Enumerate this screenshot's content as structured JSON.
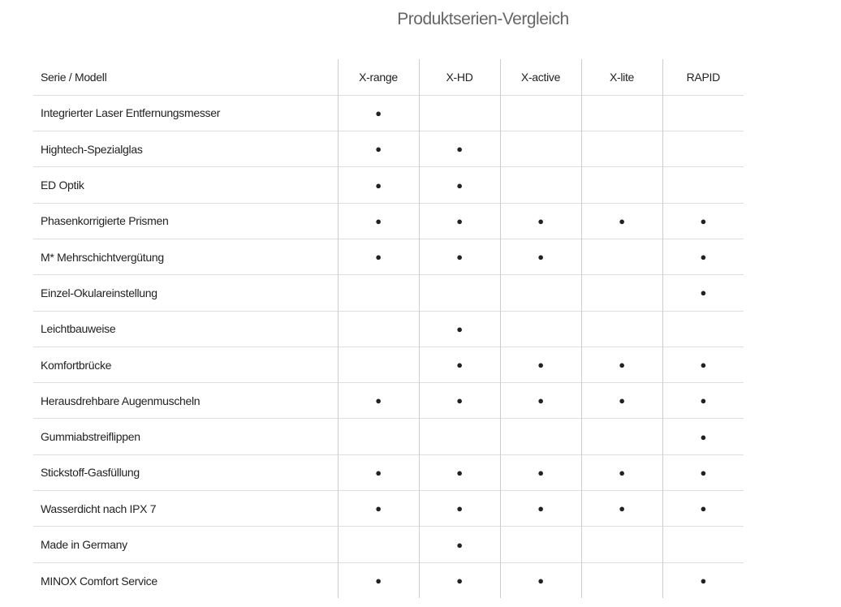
{
  "title": "Produktserien-Vergleich",
  "table": {
    "header": [
      "Serie / Modell",
      "X-range",
      "X-HD",
      "X-active",
      "X-lite",
      "RAPID"
    ],
    "rows": [
      [
        "Integrierter Laser Entfernungsmesser",
        "●",
        null,
        null,
        null,
        null
      ],
      [
        "Hightech-Spezialglas",
        "●",
        "●",
        null,
        null,
        null
      ],
      [
        "ED Optik",
        "●",
        "●",
        null,
        null,
        null
      ],
      [
        "Phasenkorrigierte Prismen",
        "●",
        "●",
        "●",
        "●",
        "●"
      ],
      [
        "M* Mehrschichtvergütung",
        "●",
        "●",
        "●",
        null,
        "●"
      ],
      [
        "Einzel-Okulareinstellung",
        null,
        null,
        null,
        null,
        "●"
      ],
      [
        "Leichtbauweise",
        null,
        "●",
        null,
        null,
        null
      ],
      [
        "Komfortbrücke",
        null,
        "●",
        "●",
        "●",
        "●"
      ],
      [
        "Herausdrehbare Augenmuscheln",
        "●",
        "●",
        "●",
        "●",
        "●"
      ],
      [
        "Gummiabstreiflippen",
        null,
        null,
        null,
        null,
        "●"
      ],
      [
        "Stickstoff-Gasfüllung",
        "●",
        "●",
        "●",
        "●",
        "●"
      ],
      [
        "Wasserdicht nach IPX 7",
        "●",
        "●",
        "●",
        "●",
        "●"
      ],
      [
        "Made in Germany",
        null,
        "●",
        null,
        null,
        null
      ],
      [
        "MINOX Comfort Service",
        "●",
        "●",
        "●",
        null,
        "●"
      ]
    ]
  }
}
